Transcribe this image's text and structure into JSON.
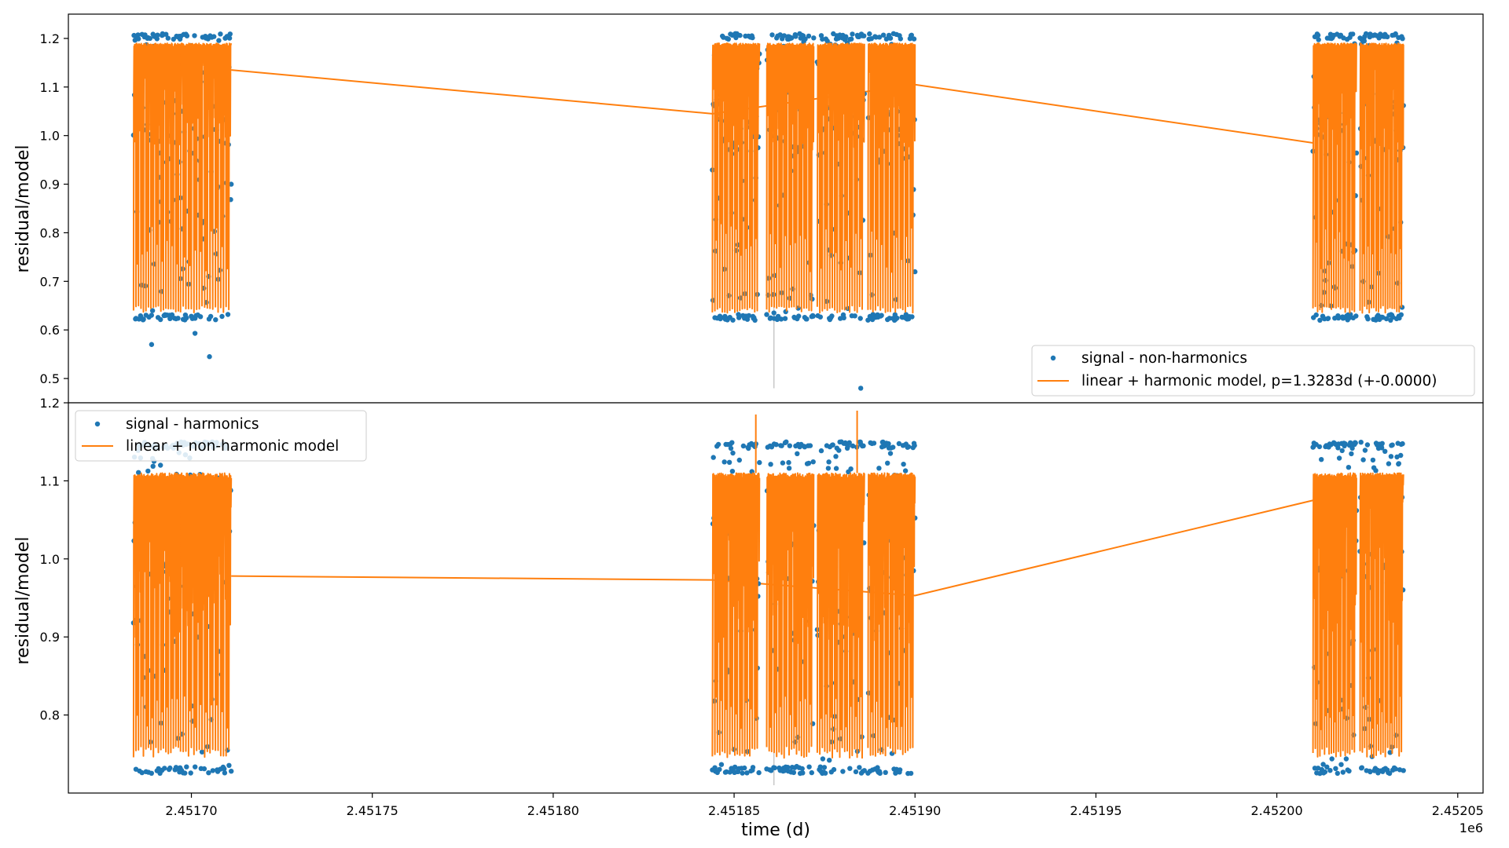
{
  "chart_data": [
    {
      "type": "scatter",
      "panel": "top",
      "title": "",
      "xlabel": "",
      "ylabel": "residual/model",
      "xlim": [
        2451666,
        2452057
      ],
      "ylim": [
        0.45,
        1.25
      ],
      "yticks": [
        0.5,
        0.6,
        0.7,
        0.8,
        0.9,
        1.0,
        1.1,
        1.2
      ],
      "ytick_labels": [
        "0.5",
        "0.6",
        "0.7",
        "0.8",
        "0.9",
        "1.0",
        "1.1",
        "1.2"
      ],
      "xticks": [],
      "grid": false,
      "legend_position": "lower-right",
      "segments": [
        [
          2451684,
          2451697
        ],
        [
          2451697,
          2451711
        ],
        [
          2451844,
          2451857
        ],
        [
          2451859,
          2451872
        ],
        [
          2451873,
          2451886
        ],
        [
          2451887,
          2451900
        ],
        [
          2452010,
          2452022
        ],
        [
          2452023,
          2452035
        ]
      ],
      "bridge_line": [
        [
          2451711,
          1.135
        ],
        [
          2451844,
          1.045
        ],
        [
          2451900,
          1.105
        ],
        [
          2452010,
          0.985
        ]
      ],
      "series": [
        {
          "name": "signal - non-harmonics",
          "kind": "scatter",
          "color": "#1f77b4",
          "band": [
            0.62,
            1.21
          ],
          "outliers": [
            [
              2451689,
              0.57
            ],
            [
              2451701,
              0.593
            ],
            [
              2451705,
              0.545
            ],
            [
              2451861,
              0.635
            ],
            [
              2451885,
              0.48
            ]
          ]
        },
        {
          "name": "linear + harmonic model, p=1.3283d (+-0.0000)",
          "kind": "line",
          "color": "#ff7f0e",
          "band": [
            0.635,
            1.2
          ],
          "dense_band": [
            0.97,
            1.19
          ]
        }
      ],
      "legend": [
        "signal - non-harmonics",
        "linear + harmonic model, p=1.3283d (+-0.0000)"
      ]
    },
    {
      "type": "scatter",
      "panel": "bottom",
      "title": "",
      "xlabel": "time (d)",
      "ylabel": "residual/model",
      "xlim": [
        2451666,
        2452057
      ],
      "ylim": [
        0.7,
        1.2
      ],
      "yticks": [
        0.8,
        0.9,
        1.0,
        1.1,
        1.2
      ],
      "ytick_labels": [
        "0.8",
        "0.9",
        "1.0",
        "1.1",
        "1.2"
      ],
      "xticks": [
        2451700,
        2451750,
        2451800,
        2451850,
        2451900,
        2451950,
        2452000,
        2452050
      ],
      "xtick_labels": [
        "2.45170",
        "2.45175",
        "2.45180",
        "2.45185",
        "2.45190",
        "2.45195",
        "2.45200",
        "2.45205"
      ],
      "x_offset_label": "1e6",
      "grid": false,
      "legend_position": "upper-left",
      "segments": [
        [
          2451684,
          2451697
        ],
        [
          2451697,
          2451711
        ],
        [
          2451844,
          2451857
        ],
        [
          2451859,
          2451872
        ],
        [
          2451873,
          2451886
        ],
        [
          2451887,
          2451900
        ],
        [
          2452010,
          2452022
        ],
        [
          2452023,
          2452035
        ]
      ],
      "bridge_line": [
        [
          2451711,
          0.978
        ],
        [
          2451844,
          0.973
        ],
        [
          2451900,
          0.953
        ],
        [
          2452010,
          1.075
        ]
      ],
      "series": [
        {
          "name": "signal - harmonics",
          "kind": "scatter",
          "color": "#1f77b4",
          "band": [
            0.725,
            1.15
          ]
        },
        {
          "name": "linear + non-harmonic model",
          "kind": "line",
          "color": "#ff7f0e",
          "band": [
            0.745,
            1.14
          ],
          "dense_band": [
            0.89,
            1.11
          ],
          "spikes": [
            [
              2451856,
              1.185
            ],
            [
              2451884,
              1.19
            ]
          ]
        }
      ],
      "legend": [
        "signal - harmonics",
        "linear + non-harmonic model"
      ]
    }
  ]
}
